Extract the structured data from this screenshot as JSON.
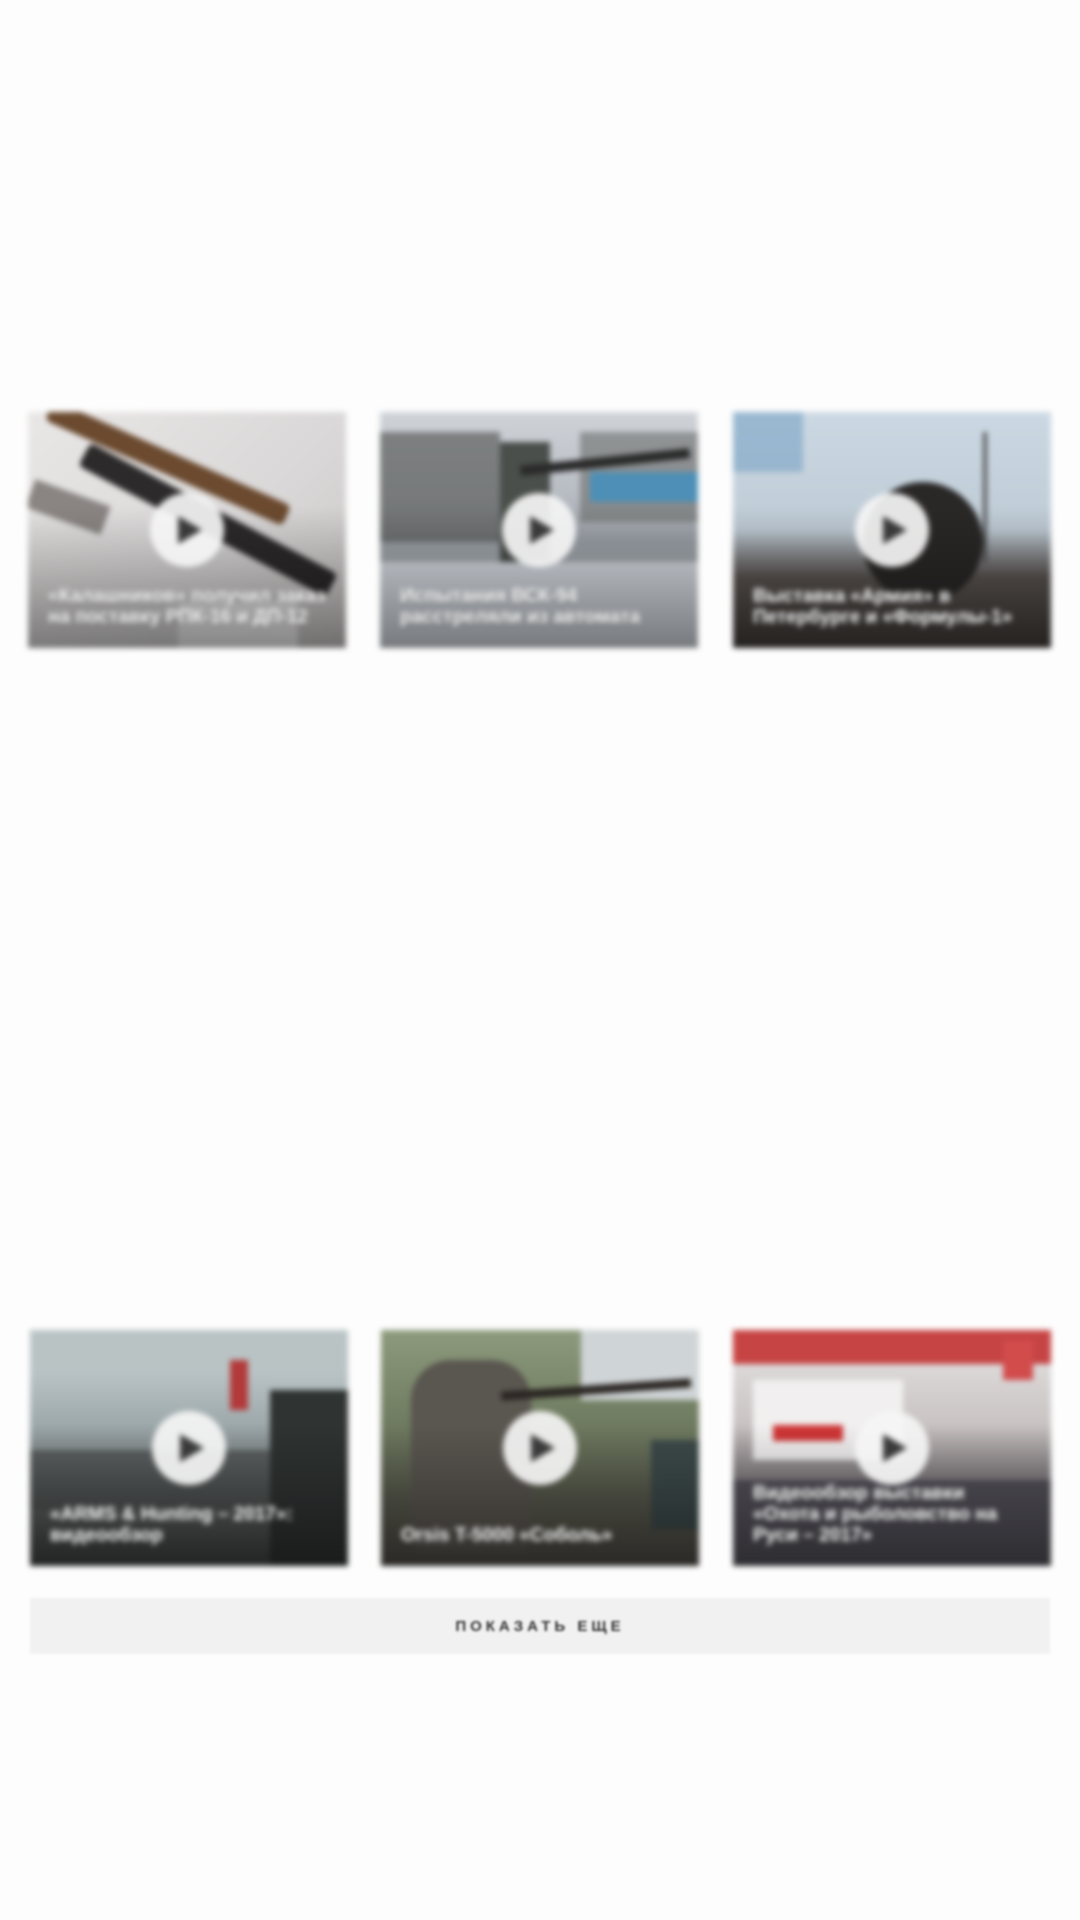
{
  "videos": [
    {
      "title": "«Калашников» получил заказ на поставку РПК-16 и ДП-12"
    },
    {
      "title": "Испытания ВСК-94 расстреляли из автомата"
    },
    {
      "title": "Выставка «Армия» в Петербурге и «Формулы-1»"
    },
    {
      "title": "«ARMS & Hunting – 2017»: видеообзор"
    },
    {
      "title": "Orsis T-5000 «Соболь»"
    },
    {
      "title": "Видеообзор выставки «Охота и рыболовство на Руси – 2017»"
    }
  ],
  "play_icon": "play-icon",
  "show_more_label": "ПОКАЗАТЬ ЕЩЕ"
}
